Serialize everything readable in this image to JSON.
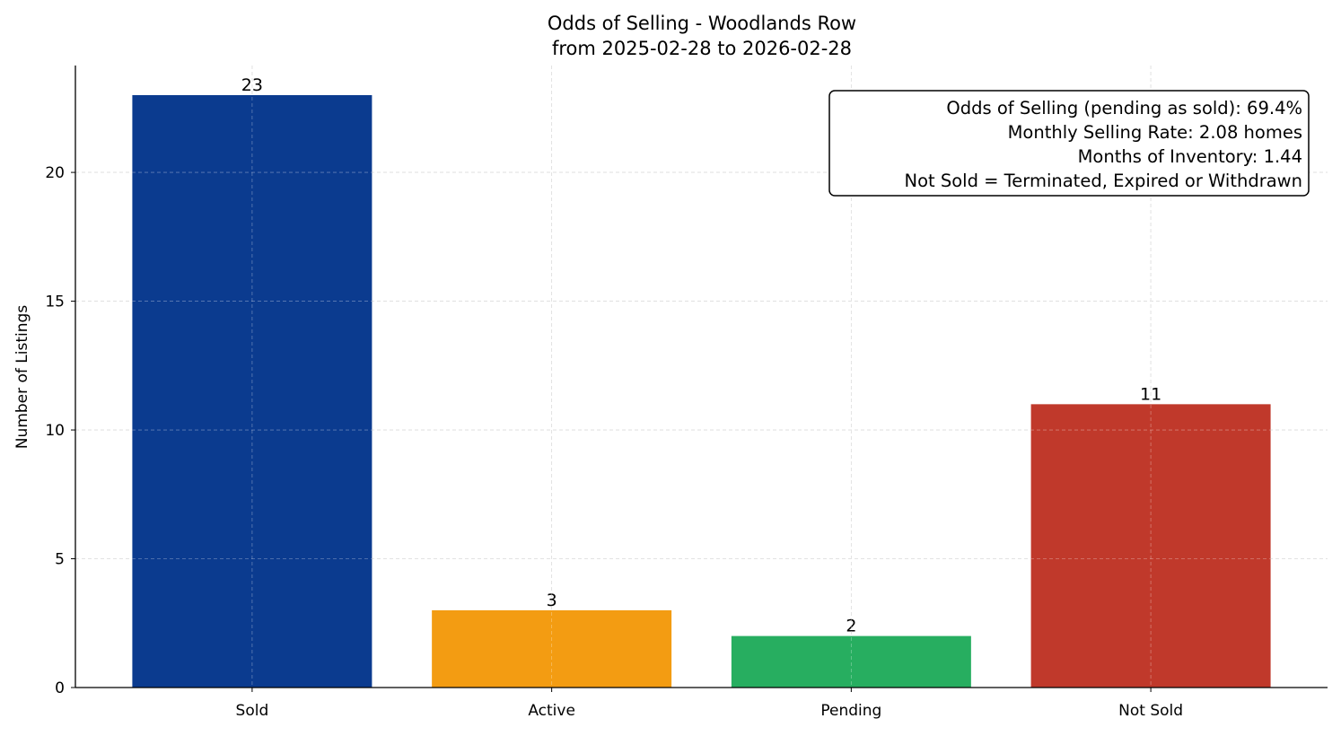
{
  "chart_data": {
    "type": "bar",
    "title": "Odds of Selling - Woodlands Row",
    "subtitle": "from 2025-02-28 to 2026-02-28",
    "xlabel": "",
    "ylabel": "Number of Listings",
    "categories": [
      "Sold",
      "Active",
      "Pending",
      "Not Sold"
    ],
    "values": [
      23,
      3,
      2,
      11
    ],
    "data_labels": [
      "23",
      "3",
      "2",
      "11"
    ],
    "colors": [
      "#0B3B8F",
      "#F39C12",
      "#27AE60",
      "#C0392B"
    ],
    "ylim": [
      0,
      24.15
    ],
    "yticks": [
      0,
      5,
      10,
      15,
      20
    ],
    "grid": true,
    "annotation": {
      "placement": "top-right",
      "lines": [
        "Odds of Selling (pending as sold): 69.4%",
        "Monthly Selling Rate: 2.08 homes",
        "Months of Inventory: 1.44",
        "Not Sold = Terminated, Expired or Withdrawn"
      ]
    }
  }
}
